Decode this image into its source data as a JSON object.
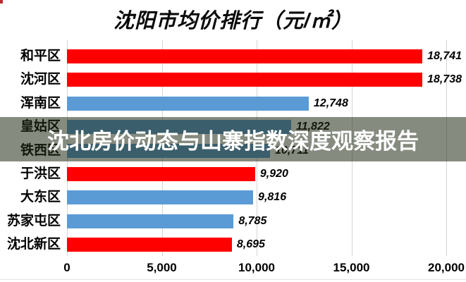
{
  "title": "沈阳市均价排行（元/㎡）",
  "corner_mark": {
    "color": "#c2272d"
  },
  "banner": {
    "text": "沈北房价动态与山寨指数深度观察报告",
    "text_color": "#ffffff",
    "overlay_color": "rgba(33,43,21,0.55)"
  },
  "chart_data": {
    "type": "bar",
    "orientation": "horizontal",
    "title": "沈阳市均价排行（元/㎡）",
    "unit": "元/㎡",
    "categories": [
      "和平区",
      "沈河区",
      "浑南区",
      "皇姑区",
      "铁西区",
      "于洪区",
      "大东区",
      "苏家屯区",
      "沈北新区"
    ],
    "values": [
      18741,
      18738,
      12748,
      11822,
      10711,
      9920,
      9816,
      8785,
      8695
    ],
    "value_labels": [
      "18,741",
      "18,738",
      "12,748",
      "11,822",
      "10,711",
      "9,920",
      "9,816",
      "8,785",
      "8,695"
    ],
    "bar_colors": [
      "#fe0000",
      "#fe0000",
      "#5b9bd5",
      "#5b9bd5",
      "#5b9bd5",
      "#fe0000",
      "#5b9bd5",
      "#5b9bd5",
      "#fe0000"
    ],
    "palette": {
      "red": "#fe0000",
      "blue": "#5b9bd5"
    },
    "xlim": [
      0,
      20000
    ],
    "x_ticks": [
      0,
      5000,
      10000,
      15000,
      20000
    ],
    "x_tick_labels": [
      "0",
      "5,000",
      "10,000",
      "15,000",
      "20,000"
    ],
    "grid": true,
    "legend_position": "none"
  }
}
